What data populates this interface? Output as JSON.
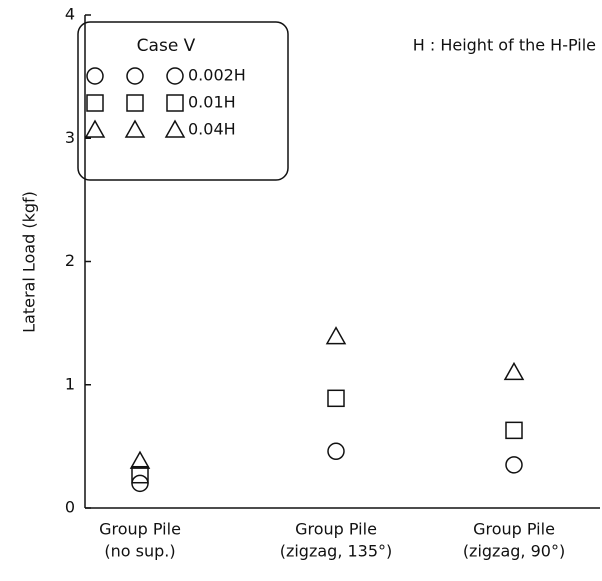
{
  "chart_data": {
    "type": "scatter",
    "ylabel": "Lateral Load (kgf)",
    "annotation": "H : Height of the H-Pile",
    "legend_title": "Case V",
    "legend": "upper left",
    "categories": [
      [
        "Group Pile",
        "(no sup.)"
      ],
      [
        "Group Pile",
        "(zigzag, 135°)"
      ],
      [
        "Group Pile",
        "(zigzag, 90°)"
      ]
    ],
    "ylim": [
      0,
      4
    ],
    "yticks": [
      0,
      1,
      2,
      3,
      4
    ],
    "series": [
      {
        "name": "0.002H",
        "marker": "circle",
        "color": "#111111",
        "values": [
          0.2,
          0.46,
          0.35
        ]
      },
      {
        "name": "0.01H",
        "marker": "square",
        "color": "#111111",
        "values": [
          0.27,
          0.89,
          0.63
        ]
      },
      {
        "name": "0.04H",
        "marker": "triangle",
        "color": "#111111",
        "values": [
          0.38,
          1.39,
          1.1
        ]
      }
    ]
  }
}
